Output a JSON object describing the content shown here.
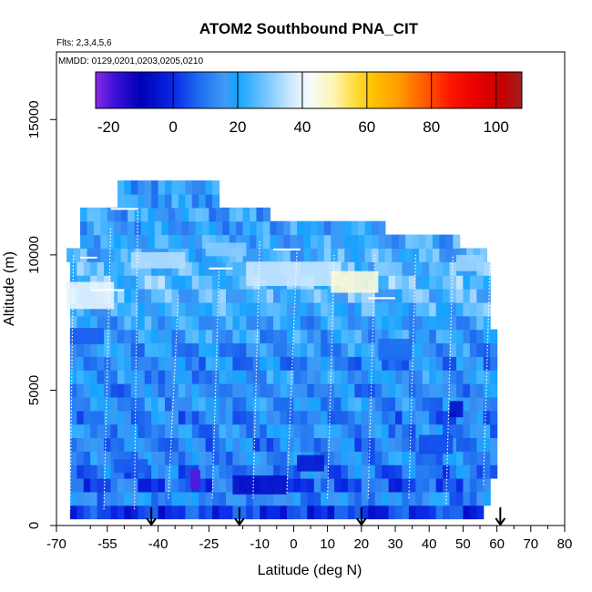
{
  "chart_data": {
    "type": "heatmap",
    "title": "ATOM2 Southbound PNA_CIT",
    "flights_label": "Flts: 2,3,4,5,6",
    "dates_label": "MMDD: 0129,0201,0203,0205,0210",
    "xlabel": "Latitude (deg N)",
    "ylabel": "Altitude (m)",
    "xlim": [
      -70,
      80
    ],
    "ylim": [
      0,
      17500
    ],
    "x_ticks": [
      -70,
      -55,
      -40,
      -25,
      -10,
      0,
      10,
      20,
      30,
      40,
      50,
      60,
      70,
      80
    ],
    "x_minor_ticks": [
      -60,
      -50,
      -45,
      -35,
      -30,
      -20,
      -15,
      -5,
      5,
      15,
      25,
      35,
      45,
      55,
      65,
      75
    ],
    "y_ticks": [
      0,
      5000,
      10000,
      15000
    ],
    "colorbar": {
      "min": -24,
      "max": 108,
      "ticks": [
        -20,
        0,
        20,
        40,
        60,
        80,
        100
      ],
      "separators": [
        -24,
        0,
        20,
        40,
        60,
        80,
        100,
        108
      ],
      "gradient_stops": [
        {
          "v": -24,
          "c": "#8a2be2"
        },
        {
          "v": -18,
          "c": "#3b10d8"
        },
        {
          "v": -10,
          "c": "#0000b5"
        },
        {
          "v": 0,
          "c": "#0a28e6"
        },
        {
          "v": 8,
          "c": "#1e6cf0"
        },
        {
          "v": 16,
          "c": "#3f9af6"
        },
        {
          "v": 20,
          "c": "#14a4ff"
        },
        {
          "v": 28,
          "c": "#6ec2ff"
        },
        {
          "v": 36,
          "c": "#c8e6ff"
        },
        {
          "v": 42,
          "c": "#f6fbff"
        },
        {
          "v": 50,
          "c": "#fff4b0"
        },
        {
          "v": 56,
          "c": "#ffde40"
        },
        {
          "v": 62,
          "c": "#ffc200"
        },
        {
          "v": 70,
          "c": "#ff9a00"
        },
        {
          "v": 78,
          "c": "#ff5a00"
        },
        {
          "v": 86,
          "c": "#ff1500"
        },
        {
          "v": 94,
          "c": "#e80000"
        },
        {
          "v": 102,
          "c": "#c40000"
        },
        {
          "v": 108,
          "c": "#a02020"
        }
      ]
    },
    "arrow_latitudes": [
      -42,
      -16,
      20,
      61
    ],
    "curtain": {
      "altitude_rows": [
        {
          "alt": 500,
          "lat_min": -66,
          "lat_max": 56,
          "value": 2
        },
        {
          "alt": 1000,
          "lat_min": -66,
          "lat_max": 58,
          "value": 14
        },
        {
          "alt": 1500,
          "lat_min": -66,
          "lat_max": 58,
          "value": 6
        },
        {
          "alt": 2000,
          "lat_min": -66,
          "lat_max": 60,
          "value": 10
        },
        {
          "alt": 2500,
          "lat_min": -66,
          "lat_max": 60,
          "value": 14
        },
        {
          "alt": 3000,
          "lat_min": -66,
          "lat_max": 60,
          "value": 12
        },
        {
          "alt": 3500,
          "lat_min": -66,
          "lat_max": 60,
          "value": 14
        },
        {
          "alt": 4000,
          "lat_min": -66,
          "lat_max": 60,
          "value": 12
        },
        {
          "alt": 4500,
          "lat_min": -66,
          "lat_max": 60,
          "value": 16
        },
        {
          "alt": 5000,
          "lat_min": -66,
          "lat_max": 60,
          "value": 14
        },
        {
          "alt": 5500,
          "lat_min": -66,
          "lat_max": 60,
          "value": 16
        },
        {
          "alt": 6000,
          "lat_min": -66,
          "lat_max": 60,
          "value": 14
        },
        {
          "alt": 6500,
          "lat_min": -66,
          "lat_max": 60,
          "value": 16
        },
        {
          "alt": 7000,
          "lat_min": -66,
          "lat_max": 60,
          "value": 18
        },
        {
          "alt": 7500,
          "lat_min": -66,
          "lat_max": 58,
          "value": 18
        },
        {
          "alt": 8000,
          "lat_min": -66,
          "lat_max": 58,
          "value": 22
        },
        {
          "alt": 8500,
          "lat_min": -66,
          "lat_max": 58,
          "value": 24
        },
        {
          "alt": 9000,
          "lat_min": -66,
          "lat_max": 58,
          "value": 26
        },
        {
          "alt": 9500,
          "lat_min": -66,
          "lat_max": 58,
          "value": 24
        },
        {
          "alt": 10000,
          "lat_min": -67,
          "lat_max": 57,
          "value": 22
        },
        {
          "alt": 10500,
          "lat_min": -63,
          "lat_max": 48,
          "value": 20
        },
        {
          "alt": 11000,
          "lat_min": -63,
          "lat_max": 26,
          "value": 18
        },
        {
          "alt": 11500,
          "lat_min": -63,
          "lat_max": -8,
          "value": 18
        },
        {
          "alt": 12000,
          "lat_min": -52,
          "lat_max": -23,
          "value": 18
        },
        {
          "alt": 12500,
          "lat_min": -52,
          "lat_max": -23,
          "value": 16
        }
      ],
      "anomalies": [
        {
          "lat": -29,
          "alt": 1700,
          "w": 3,
          "h": 700,
          "value": -20
        },
        {
          "lat": -10,
          "alt": 1500,
          "w": 16,
          "h": 700,
          "value": -6
        },
        {
          "lat": 5,
          "alt": 2300,
          "w": 8,
          "h": 600,
          "value": -4
        },
        {
          "lat": 48,
          "alt": 4300,
          "w": 4,
          "h": 600,
          "value": -6
        },
        {
          "lat": -60,
          "alt": 8500,
          "w": 14,
          "h": 1000,
          "value": 40
        },
        {
          "lat": 0,
          "alt": 9300,
          "w": 28,
          "h": 900,
          "value": 36
        },
        {
          "lat": 18,
          "alt": 9000,
          "w": 14,
          "h": 800,
          "value": 46
        },
        {
          "lat": -40,
          "alt": 9800,
          "w": 16,
          "h": 600,
          "value": 34
        },
        {
          "lat": 52,
          "alt": 9700,
          "w": 8,
          "h": 600,
          "value": 32
        },
        {
          "lat": -20,
          "alt": 10200,
          "w": 12,
          "h": 500,
          "value": 30
        },
        {
          "lat": -61,
          "alt": 7000,
          "w": 10,
          "h": 600,
          "value": 6
        },
        {
          "lat": 30,
          "alt": 6500,
          "w": 10,
          "h": 800,
          "value": 8
        },
        {
          "lat": 42,
          "alt": 3000,
          "w": 10,
          "h": 700,
          "value": 4
        },
        {
          "lat": -48,
          "alt": 2200,
          "w": 10,
          "h": 500,
          "value": 6
        }
      ],
      "profile_tracks": [
        {
          "lat_bottom": -66,
          "lat_top": -65,
          "alt_bottom": 600,
          "alt_top": 10000
        },
        {
          "lat_bottom": -56,
          "lat_top": -54,
          "alt_bottom": 600,
          "alt_top": 11000
        },
        {
          "lat_bottom": -47,
          "lat_top": -46,
          "alt_bottom": 600,
          "alt_top": 11800
        },
        {
          "lat_bottom": -37,
          "lat_top": -34,
          "alt_bottom": 1000,
          "alt_top": 8500
        },
        {
          "lat_bottom": -24,
          "lat_top": -22,
          "alt_bottom": 1000,
          "alt_top": 9500
        },
        {
          "lat_bottom": -12,
          "lat_top": -10,
          "alt_bottom": 1000,
          "alt_top": 10500
        },
        {
          "lat_bottom": -2,
          "lat_top": 1,
          "alt_bottom": 1200,
          "alt_top": 10200
        },
        {
          "lat_bottom": 10,
          "lat_top": 12,
          "alt_bottom": 1000,
          "alt_top": 10000
        },
        {
          "lat_bottom": 22,
          "lat_top": 24,
          "alt_bottom": 1000,
          "alt_top": 10000
        },
        {
          "lat_bottom": 34,
          "lat_top": 36,
          "alt_bottom": 1000,
          "alt_top": 10000
        },
        {
          "lat_bottom": 45,
          "lat_top": 47,
          "alt_bottom": 800,
          "alt_top": 10000
        },
        {
          "lat_bottom": 56,
          "lat_top": 58,
          "alt_bottom": 1500,
          "alt_top": 9800
        }
      ],
      "level_legs": [
        {
          "lat_start": -60,
          "lat_end": -50,
          "alt": 8700
        },
        {
          "lat_start": -25,
          "lat_end": -18,
          "alt": 9500
        },
        {
          "lat_start": -6,
          "lat_end": 2,
          "alt": 10200
        },
        {
          "lat_start": 22,
          "lat_end": 30,
          "alt": 8400
        },
        {
          "lat_start": -54,
          "lat_end": -46,
          "alt": 11700
        },
        {
          "lat_start": -63,
          "lat_end": -58,
          "alt": 9900
        }
      ]
    }
  }
}
